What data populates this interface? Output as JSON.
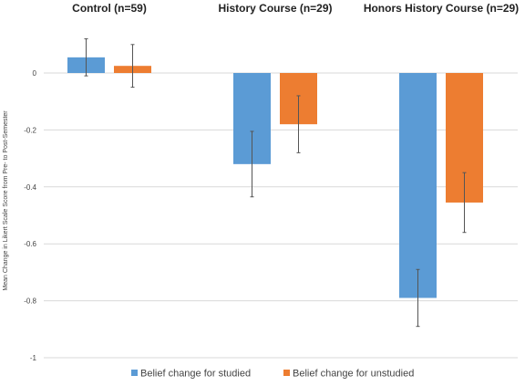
{
  "chart_data": {
    "type": "bar",
    "categories": [
      "Control (n=59)",
      "History Course (n=29)",
      "Honors History Course (n=29)"
    ],
    "series": [
      {
        "name": "Belief change for studied",
        "color": "#5b9bd5",
        "values": [
          0.055,
          -0.32,
          -0.79
        ],
        "error": [
          0.065,
          0.115,
          0.1
        ]
      },
      {
        "name": "Belief change for unstudied",
        "color": "#ed7d31",
        "values": [
          0.025,
          -0.18,
          -0.455
        ],
        "error": [
          0.075,
          0.1,
          0.105
        ]
      }
    ],
    "ylabel": "Mean Change in Likert Scale Score from Pre- to Post-Semester",
    "ylim": [
      -1,
      0.2
    ],
    "yticks": [
      "0",
      "-0.2",
      "-0.4",
      "-0.6",
      "-0.8",
      "-1"
    ],
    "ytick_values": [
      0,
      -0.2,
      -0.4,
      -0.6,
      -0.8,
      -1
    ],
    "grid": true,
    "legend_position": "bottom"
  }
}
